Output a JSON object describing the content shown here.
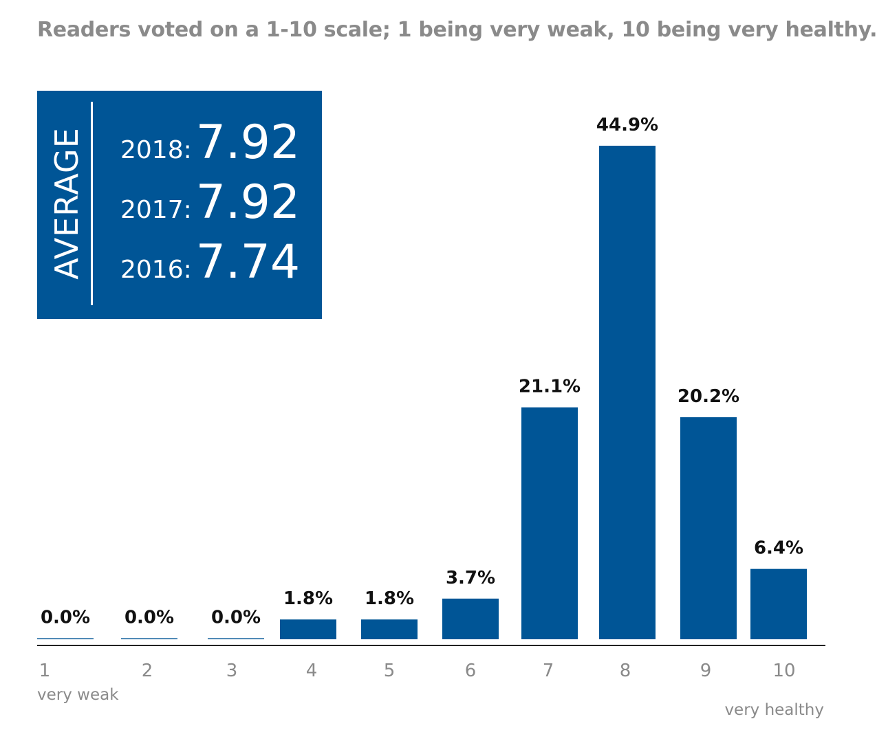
{
  "subtitle": "Readers voted on a 1-10 scale; 1 being very weak, 10 being very healthy.",
  "average": {
    "label": "AVERAGE",
    "rows": [
      {
        "year": "2018:",
        "value": "7.92"
      },
      {
        "year": "2017:",
        "value": "7.92"
      },
      {
        "year": "2016:",
        "value": "7.74"
      }
    ]
  },
  "colors": {
    "bar": "#005596",
    "box": "#005596",
    "axis": "#222222"
  },
  "chart_data": {
    "type": "bar",
    "categories": [
      "1",
      "2",
      "3",
      "4",
      "5",
      "6",
      "7",
      "8",
      "9",
      "10"
    ],
    "values": [
      0.0,
      0.0,
      0.0,
      1.8,
      1.8,
      3.7,
      21.1,
      44.9,
      20.2,
      6.4
    ],
    "data_labels": [
      "0.0%",
      "0.0%",
      "0.0%",
      "1.8%",
      "1.8%",
      "3.7%",
      "21.1%",
      "44.9%",
      "20.2%",
      "6.4%"
    ],
    "ylim": [
      0,
      45
    ],
    "grid": false,
    "xlabel": "",
    "ylabel": "",
    "low_end_label": "very weak",
    "high_end_label": "very healthy"
  }
}
